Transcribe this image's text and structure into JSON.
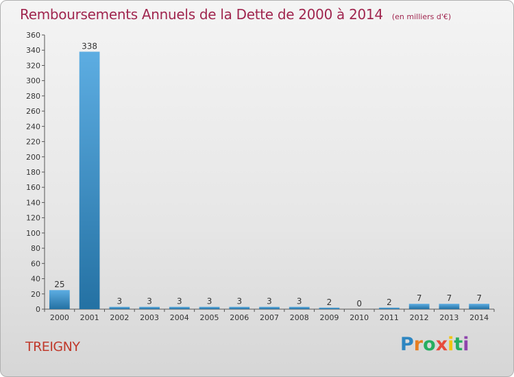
{
  "title": "Remboursements Annuels de la Dette de 2000 à 2014",
  "unit": "(en milliers d'€)",
  "commune": "TREIGNY",
  "logo": {
    "letters": [
      "P",
      "r",
      "o",
      "x",
      "i",
      "t",
      "i"
    ],
    "colors": [
      "#2e86c1",
      "#e67e22",
      "#27ae60",
      "#e74c3c",
      "#f1c40f",
      "#27ae60",
      "#8e44ad"
    ]
  },
  "colors": {
    "bar_light": "#5dade2",
    "bar_dark": "#2471a3",
    "title": "#a0264f",
    "commune": "#c0392b"
  },
  "chart_data": {
    "type": "bar",
    "title": "Remboursements Annuels de la Dette de 2000 à 2014",
    "ylabel": "",
    "xlabel": "",
    "categories": [
      "2000",
      "2001",
      "2002",
      "2003",
      "2004",
      "2005",
      "2006",
      "2007",
      "2008",
      "2009",
      "2010",
      "2011",
      "2012",
      "2013",
      "2014"
    ],
    "values": [
      25,
      338,
      3,
      3,
      3,
      3,
      3,
      3,
      3,
      2,
      0,
      2,
      7,
      7,
      7
    ],
    "ylim": [
      0,
      360
    ],
    "yticks": [
      0,
      20,
      40,
      60,
      80,
      100,
      120,
      140,
      160,
      180,
      200,
      220,
      240,
      260,
      280,
      300,
      320,
      340,
      360
    ],
    "grid": false
  }
}
